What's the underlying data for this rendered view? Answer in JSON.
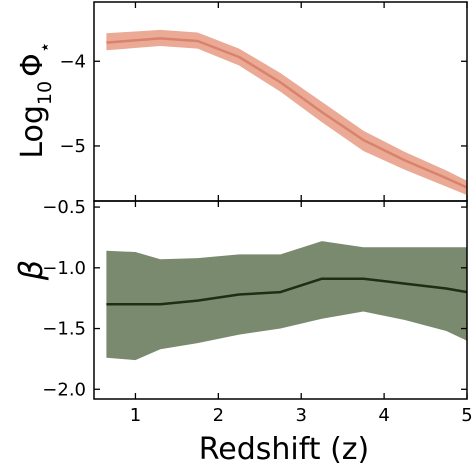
{
  "chart_data": [
    {
      "type": "line",
      "panel": "top",
      "ylabel": "Log10Φ⋆",
      "ylabel_parts": {
        "base": "Log",
        "sub": "10",
        "symbol": "Φ",
        "sup": "⋆"
      },
      "xlabel": "",
      "xlim": [
        0.5,
        5.0
      ],
      "ylim": [
        -5.65,
        -3.3
      ],
      "yticks": [
        -4,
        -5
      ],
      "ytick_labels": [
        "−4",
        "−5"
      ],
      "xticks": [
        1,
        2,
        3,
        4,
        5
      ],
      "grid": false,
      "series": [
        {
          "color": "#d9826c",
          "band_color": "#ebaa96",
          "x": [
            0.65,
            1.3,
            1.75,
            2.25,
            2.75,
            3.25,
            3.75,
            4.25,
            4.75,
            5.0
          ],
          "y": [
            -3.78,
            -3.73,
            -3.76,
            -3.95,
            -4.25,
            -4.6,
            -4.93,
            -5.17,
            -5.38,
            -5.49
          ],
          "y_low": [
            -3.87,
            -3.82,
            -3.85,
            -4.05,
            -4.36,
            -4.72,
            -5.06,
            -5.28,
            -5.48,
            -5.58
          ],
          "y_high": [
            -3.67,
            -3.63,
            -3.66,
            -3.85,
            -4.14,
            -4.48,
            -4.82,
            -5.07,
            -5.29,
            -5.41
          ]
        }
      ]
    },
    {
      "type": "line",
      "panel": "bottom",
      "ylabel": "β",
      "xlabel": "Redshift (z)",
      "xlim": [
        0.5,
        5.0
      ],
      "ylim": [
        -2.08,
        -0.45
      ],
      "yticks": [
        -0.5,
        -1.0,
        -1.5,
        -2.0
      ],
      "ytick_labels": [
        "−0.5",
        "−1.0",
        "−1.5",
        "−2.0"
      ],
      "xticks": [
        1,
        2,
        3,
        4,
        5
      ],
      "xtick_labels": [
        "1",
        "2",
        "3",
        "4",
        "5"
      ],
      "grid": false,
      "series": [
        {
          "color": "#1c2e14",
          "band_color": "#7a8a6e",
          "x": [
            0.65,
            1.0,
            1.3,
            1.75,
            2.25,
            2.75,
            3.25,
            3.75,
            4.25,
            4.75,
            5.0
          ],
          "y": [
            -1.3,
            -1.3,
            -1.3,
            -1.27,
            -1.22,
            -1.2,
            -1.09,
            -1.09,
            -1.13,
            -1.17,
            -1.2
          ],
          "y_low": [
            -1.74,
            -1.76,
            -1.67,
            -1.62,
            -1.55,
            -1.5,
            -1.42,
            -1.36,
            -1.43,
            -1.52,
            -1.6
          ],
          "y_high": [
            -0.86,
            -0.87,
            -0.93,
            -0.92,
            -0.89,
            -0.89,
            -0.78,
            -0.83,
            -0.83,
            -0.83,
            -0.83
          ]
        }
      ]
    }
  ]
}
